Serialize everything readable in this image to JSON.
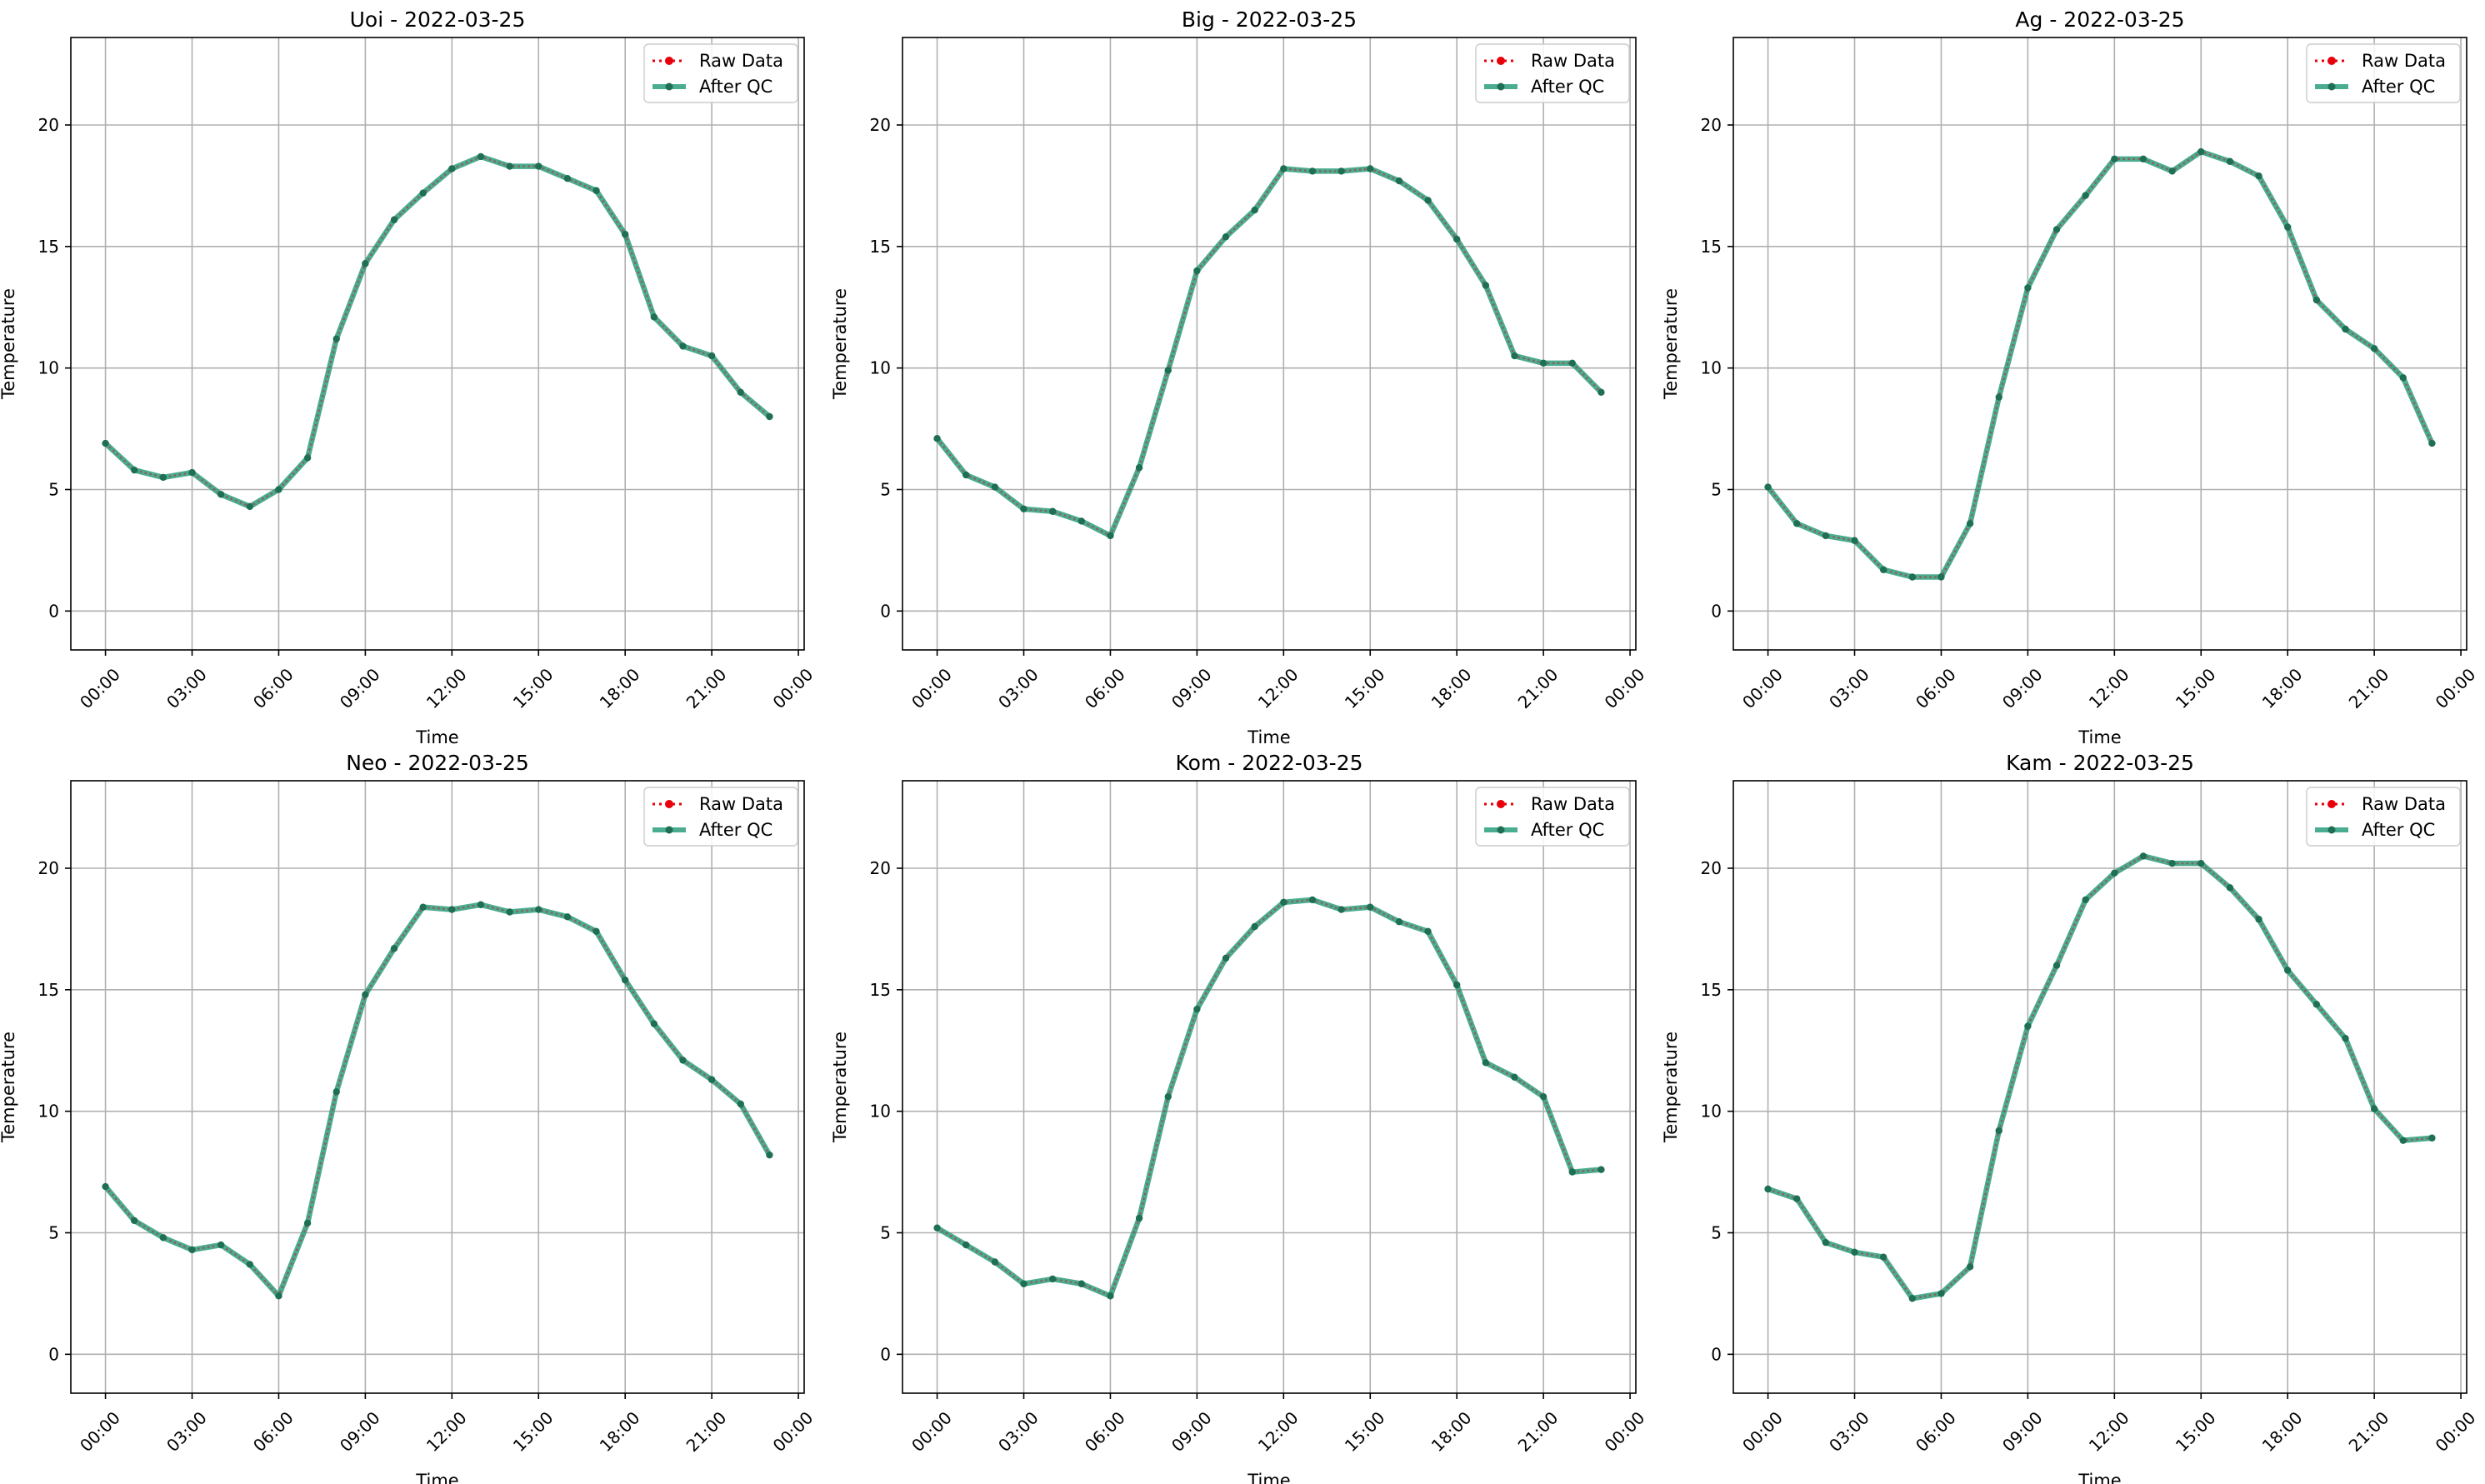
{
  "chart_data": [
    {
      "type": "line",
      "title": "Uoi - 2022-03-25",
      "xlabel": "Time",
      "ylabel": "Temperature",
      "x_tick_labels": [
        "00:00",
        "03:00",
        "06:00",
        "09:00",
        "12:00",
        "15:00",
        "18:00",
        "21:00",
        "00:00"
      ],
      "y_ticks": [
        0,
        5,
        10,
        15,
        20
      ],
      "ylim": [
        -1.6,
        23.6
      ],
      "xlim_hours": [
        -1.2,
        24.2
      ],
      "grid": true,
      "legend_placement": "top-right",
      "series": [
        {
          "name": "Raw Data",
          "color": "#e8000b",
          "style": "dotted-with-markers",
          "x_hours": [
            0,
            1,
            2,
            3,
            4,
            5,
            6,
            7,
            8,
            9,
            10,
            11,
            12,
            13,
            14,
            15,
            16,
            17,
            18,
            19,
            20,
            21,
            22,
            23
          ],
          "values": [
            6.9,
            5.8,
            5.5,
            5.7,
            4.8,
            4.3,
            5.0,
            6.3,
            11.2,
            14.3,
            16.1,
            17.2,
            18.2,
            18.7,
            18.3,
            18.3,
            17.8,
            17.3,
            15.5,
            12.1,
            10.9,
            10.5,
            9.0,
            8.0
          ]
        },
        {
          "name": "After QC",
          "color": "#2a9d7c",
          "style": "solid-with-markers",
          "x_hours": [
            0,
            1,
            2,
            3,
            4,
            5,
            6,
            7,
            8,
            9,
            10,
            11,
            12,
            13,
            14,
            15,
            16,
            17,
            18,
            19,
            20,
            21,
            22,
            23
          ],
          "values": [
            6.9,
            5.8,
            5.5,
            5.7,
            4.8,
            4.3,
            5.0,
            6.3,
            11.2,
            14.3,
            16.1,
            17.2,
            18.2,
            18.7,
            18.3,
            18.3,
            17.8,
            17.3,
            15.5,
            12.1,
            10.9,
            10.5,
            9.0,
            8.0
          ]
        }
      ]
    },
    {
      "type": "line",
      "title": "Big - 2022-03-25",
      "xlabel": "Time",
      "ylabel": "Temperature",
      "x_tick_labels": [
        "00:00",
        "03:00",
        "06:00",
        "09:00",
        "12:00",
        "15:00",
        "18:00",
        "21:00",
        "00:00"
      ],
      "y_ticks": [
        0,
        5,
        10,
        15,
        20
      ],
      "ylim": [
        -1.6,
        23.6
      ],
      "xlim_hours": [
        -1.2,
        24.2
      ],
      "grid": true,
      "legend_placement": "top-right",
      "series": [
        {
          "name": "Raw Data",
          "color": "#e8000b",
          "style": "dotted-with-markers",
          "x_hours": [
            0,
            1,
            2,
            3,
            4,
            5,
            6,
            7,
            8,
            9,
            10,
            11,
            12,
            13,
            14,
            15,
            16,
            17,
            18,
            19,
            20,
            21,
            22,
            23
          ],
          "values": [
            7.1,
            5.6,
            5.1,
            4.2,
            4.1,
            3.7,
            3.1,
            5.9,
            9.9,
            14.0,
            15.4,
            16.5,
            18.2,
            18.1,
            18.1,
            18.2,
            17.7,
            16.9,
            15.3,
            13.4,
            10.5,
            10.2,
            10.2,
            9.0
          ]
        },
        {
          "name": "After QC",
          "color": "#2a9d7c",
          "style": "solid-with-markers",
          "x_hours": [
            0,
            1,
            2,
            3,
            4,
            5,
            6,
            7,
            8,
            9,
            10,
            11,
            12,
            13,
            14,
            15,
            16,
            17,
            18,
            19,
            20,
            21,
            22,
            23
          ],
          "values": [
            7.1,
            5.6,
            5.1,
            4.2,
            4.1,
            3.7,
            3.1,
            5.9,
            9.9,
            14.0,
            15.4,
            16.5,
            18.2,
            18.1,
            18.1,
            18.2,
            17.7,
            16.9,
            15.3,
            13.4,
            10.5,
            10.2,
            10.2,
            9.0
          ]
        }
      ]
    },
    {
      "type": "line",
      "title": "Ag - 2022-03-25",
      "xlabel": "Time",
      "ylabel": "Temperature",
      "x_tick_labels": [
        "00:00",
        "03:00",
        "06:00",
        "09:00",
        "12:00",
        "15:00",
        "18:00",
        "21:00",
        "00:00"
      ],
      "y_ticks": [
        0,
        5,
        10,
        15,
        20
      ],
      "ylim": [
        -1.6,
        23.6
      ],
      "xlim_hours": [
        -1.2,
        24.2
      ],
      "grid": true,
      "legend_placement": "top-right",
      "series": [
        {
          "name": "Raw Data",
          "color": "#e8000b",
          "style": "dotted-with-markers",
          "x_hours": [
            0,
            1,
            2,
            3,
            4,
            5,
            6,
            7,
            8,
            9,
            10,
            11,
            12,
            13,
            14,
            15,
            16,
            17,
            18,
            19,
            20,
            21,
            22,
            23
          ],
          "values": [
            5.1,
            3.6,
            3.1,
            2.9,
            1.7,
            1.4,
            1.4,
            3.6,
            8.8,
            13.3,
            15.7,
            17.1,
            18.6,
            18.6,
            18.1,
            18.9,
            18.5,
            17.9,
            15.8,
            12.8,
            11.6,
            10.8,
            9.6,
            6.9
          ]
        },
        {
          "name": "After QC",
          "color": "#2a9d7c",
          "style": "solid-with-markers",
          "x_hours": [
            0,
            1,
            2,
            3,
            4,
            5,
            6,
            7,
            8,
            9,
            10,
            11,
            12,
            13,
            14,
            15,
            16,
            17,
            18,
            19,
            20,
            21,
            22,
            23
          ],
          "values": [
            5.1,
            3.6,
            3.1,
            2.9,
            1.7,
            1.4,
            1.4,
            3.6,
            8.8,
            13.3,
            15.7,
            17.1,
            18.6,
            18.6,
            18.1,
            18.9,
            18.5,
            17.9,
            15.8,
            12.8,
            11.6,
            10.8,
            9.6,
            6.9
          ]
        }
      ]
    },
    {
      "type": "line",
      "title": "Neo - 2022-03-25",
      "xlabel": "Time",
      "ylabel": "Temperature",
      "x_tick_labels": [
        "00:00",
        "03:00",
        "06:00",
        "09:00",
        "12:00",
        "15:00",
        "18:00",
        "21:00",
        "00:00"
      ],
      "y_ticks": [
        0,
        5,
        10,
        15,
        20
      ],
      "ylim": [
        -1.6,
        23.6
      ],
      "xlim_hours": [
        -1.2,
        24.2
      ],
      "grid": true,
      "legend_placement": "top-right",
      "series": [
        {
          "name": "Raw Data",
          "color": "#e8000b",
          "style": "dotted-with-markers",
          "x_hours": [
            0,
            1,
            2,
            3,
            4,
            5,
            6,
            7,
            8,
            9,
            10,
            11,
            12,
            13,
            14,
            15,
            16,
            17,
            18,
            19,
            20,
            21,
            22,
            23
          ],
          "values": [
            6.9,
            5.5,
            4.8,
            4.3,
            4.5,
            3.7,
            2.4,
            5.4,
            10.8,
            14.8,
            16.7,
            18.4,
            18.3,
            18.5,
            18.2,
            18.3,
            18.0,
            17.4,
            15.4,
            13.6,
            12.1,
            11.3,
            10.3,
            8.2
          ]
        },
        {
          "name": "After QC",
          "color": "#2a9d7c",
          "style": "solid-with-markers",
          "x_hours": [
            0,
            1,
            2,
            3,
            4,
            5,
            6,
            7,
            8,
            9,
            10,
            11,
            12,
            13,
            14,
            15,
            16,
            17,
            18,
            19,
            20,
            21,
            22,
            23
          ],
          "values": [
            6.9,
            5.5,
            4.8,
            4.3,
            4.5,
            3.7,
            2.4,
            5.4,
            10.8,
            14.8,
            16.7,
            18.4,
            18.3,
            18.5,
            18.2,
            18.3,
            18.0,
            17.4,
            15.4,
            13.6,
            12.1,
            11.3,
            10.3,
            8.2
          ]
        }
      ]
    },
    {
      "type": "line",
      "title": "Kom - 2022-03-25",
      "xlabel": "Time",
      "ylabel": "Temperature",
      "x_tick_labels": [
        "00:00",
        "03:00",
        "06:00",
        "09:00",
        "12:00",
        "15:00",
        "18:00",
        "21:00",
        "00:00"
      ],
      "y_ticks": [
        0,
        5,
        10,
        15,
        20
      ],
      "ylim": [
        -1.6,
        23.6
      ],
      "xlim_hours": [
        -1.2,
        24.2
      ],
      "grid": true,
      "legend_placement": "top-right",
      "series": [
        {
          "name": "Raw Data",
          "color": "#e8000b",
          "style": "dotted-with-markers",
          "x_hours": [
            0,
            1,
            2,
            3,
            4,
            5,
            6,
            7,
            8,
            9,
            10,
            11,
            12,
            13,
            14,
            15,
            16,
            17,
            18,
            19,
            20,
            21,
            22,
            23
          ],
          "values": [
            5.2,
            4.5,
            3.8,
            2.9,
            3.1,
            2.9,
            2.4,
            5.6,
            10.6,
            14.2,
            16.3,
            17.6,
            18.6,
            18.7,
            18.3,
            18.4,
            17.8,
            17.4,
            15.2,
            12.0,
            11.4,
            10.6,
            7.5,
            7.6
          ]
        },
        {
          "name": "After QC",
          "color": "#2a9d7c",
          "style": "solid-with-markers",
          "x_hours": [
            0,
            1,
            2,
            3,
            4,
            5,
            6,
            7,
            8,
            9,
            10,
            11,
            12,
            13,
            14,
            15,
            16,
            17,
            18,
            19,
            20,
            21,
            22,
            23
          ],
          "values": [
            5.2,
            4.5,
            3.8,
            2.9,
            3.1,
            2.9,
            2.4,
            5.6,
            10.6,
            14.2,
            16.3,
            17.6,
            18.6,
            18.7,
            18.3,
            18.4,
            17.8,
            17.4,
            15.2,
            12.0,
            11.4,
            10.6,
            7.5,
            7.6
          ]
        }
      ]
    },
    {
      "type": "line",
      "title": "Kam - 2022-03-25",
      "xlabel": "Time",
      "ylabel": "Temperature",
      "x_tick_labels": [
        "00:00",
        "03:00",
        "06:00",
        "09:00",
        "12:00",
        "15:00",
        "18:00",
        "21:00",
        "00:00"
      ],
      "y_ticks": [
        0,
        5,
        10,
        15,
        20
      ],
      "ylim": [
        -1.6,
        23.6
      ],
      "xlim_hours": [
        -1.2,
        24.2
      ],
      "grid": true,
      "legend_placement": "top-right",
      "series": [
        {
          "name": "Raw Data",
          "color": "#e8000b",
          "style": "dotted-with-markers",
          "x_hours": [
            0,
            1,
            2,
            3,
            4,
            5,
            6,
            7,
            8,
            9,
            10,
            11,
            12,
            13,
            14,
            15,
            16,
            17,
            18,
            19,
            20,
            21,
            22,
            23
          ],
          "values": [
            6.8,
            6.4,
            4.6,
            4.2,
            4.0,
            2.3,
            2.5,
            3.6,
            9.2,
            13.5,
            16.0,
            18.7,
            19.8,
            20.5,
            20.2,
            20.2,
            19.2,
            17.9,
            15.8,
            14.4,
            13.0,
            10.1,
            8.8,
            8.9
          ]
        },
        {
          "name": "After QC",
          "color": "#2a9d7c",
          "style": "solid-with-markers",
          "x_hours": [
            0,
            1,
            2,
            3,
            4,
            5,
            6,
            7,
            8,
            9,
            10,
            11,
            12,
            13,
            14,
            15,
            16,
            17,
            18,
            19,
            20,
            21,
            22,
            23
          ],
          "values": [
            6.8,
            6.4,
            4.6,
            4.2,
            4.0,
            2.3,
            2.5,
            3.6,
            9.2,
            13.5,
            16.0,
            18.7,
            19.8,
            20.5,
            20.2,
            20.2,
            19.2,
            17.9,
            15.8,
            14.4,
            13.0,
            10.1,
            8.8,
            8.9
          ]
        }
      ]
    }
  ]
}
